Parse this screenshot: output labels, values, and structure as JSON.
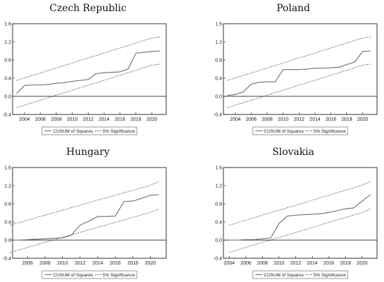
{
  "chart_data": [
    {
      "type": "line",
      "title": "Czech Republic",
      "x": [
        2003,
        2004,
        2005,
        2006,
        2007,
        2008,
        2009,
        2010,
        2011,
        2012,
        2013,
        2014,
        2015,
        2016,
        2017,
        2018,
        2019,
        2020,
        2021
      ],
      "xticks": [
        "2004",
        "2006",
        "2008",
        "2010",
        "2012",
        "2014",
        "2016",
        "2018",
        "2020"
      ],
      "yticks": [
        "-0.4",
        "0.0",
        "0.4",
        "0.8",
        "1.2",
        "1.6"
      ],
      "xlim": [
        2002.5,
        2021.8
      ],
      "ylim": [
        -0.4,
        1.6
      ],
      "series": [
        {
          "name": "CUSUM of Squares",
          "style": "solid",
          "color": "#6b6b6b",
          "values": [
            0.06,
            0.24,
            0.25,
            0.25,
            0.26,
            0.29,
            0.3,
            0.33,
            0.35,
            0.37,
            0.5,
            0.52,
            0.53,
            0.54,
            0.6,
            0.95,
            0.97,
            0.99,
            1.0
          ]
        },
        {
          "name": "5% Significance",
          "style": "dashed",
          "color": "#333333",
          "role": "upper",
          "values": [
            0.35,
            0.405,
            0.46,
            0.515,
            0.57,
            0.625,
            0.68,
            0.735,
            0.79,
            0.845,
            0.9,
            0.955,
            1.01,
            1.065,
            1.12,
            1.175,
            1.23,
            1.285,
            1.31
          ]
        },
        {
          "role": "lower",
          "style": "dashed",
          "color": "#333333",
          "values": [
            -0.25,
            -0.195,
            -0.14,
            -0.085,
            -0.03,
            0.025,
            0.08,
            0.135,
            0.19,
            0.245,
            0.3,
            0.355,
            0.41,
            0.465,
            0.52,
            0.575,
            0.63,
            0.685,
            0.71
          ]
        }
      ],
      "legend": [
        "CUSUM of Squares",
        "5% Significance"
      ],
      "grid": false,
      "zero_line": true
    },
    {
      "type": "line",
      "title": "Poland",
      "x": [
        2003,
        2004,
        2005,
        2006,
        2007,
        2008,
        2009,
        2010,
        2011,
        2012,
        2013,
        2014,
        2015,
        2016,
        2017,
        2018,
        2019,
        2020,
        2021
      ],
      "xticks": [
        "2004",
        "2006",
        "2008",
        "2010",
        "2012",
        "2014",
        "2016",
        "2018",
        "2020"
      ],
      "yticks": [
        "-0.4",
        "0.0",
        "0.4",
        "0.8",
        "1.2",
        "1.6"
      ],
      "xlim": [
        2002.5,
        2021.8
      ],
      "ylim": [
        -0.4,
        1.6
      ],
      "series": [
        {
          "name": "CUSUM of Squares",
          "style": "solid",
          "color": "#6b6b6b",
          "values": [
            0.02,
            0.04,
            0.1,
            0.27,
            0.31,
            0.32,
            0.32,
            0.59,
            0.59,
            0.59,
            0.6,
            0.62,
            0.62,
            0.63,
            0.64,
            0.7,
            0.76,
            0.99,
            1.0
          ]
        },
        {
          "name": "5% Significance",
          "style": "dashed",
          "color": "#333333",
          "role": "upper",
          "values": [
            0.35,
            0.405,
            0.46,
            0.515,
            0.57,
            0.625,
            0.68,
            0.735,
            0.79,
            0.845,
            0.9,
            0.955,
            1.01,
            1.065,
            1.12,
            1.175,
            1.23,
            1.285,
            1.31
          ]
        },
        {
          "role": "lower",
          "style": "dashed",
          "color": "#333333",
          "values": [
            -0.25,
            -0.195,
            -0.14,
            -0.085,
            -0.03,
            0.025,
            0.08,
            0.135,
            0.19,
            0.245,
            0.3,
            0.355,
            0.41,
            0.465,
            0.52,
            0.575,
            0.63,
            0.685,
            0.71
          ]
        }
      ],
      "legend": [
        "CUSUM of Squares",
        "5% Significance"
      ],
      "grid": false,
      "zero_line": true
    },
    {
      "type": "line",
      "title": "Hungary",
      "x": [
        2004,
        2005,
        2006,
        2007,
        2008,
        2009,
        2010,
        2011,
        2012,
        2013,
        2014,
        2015,
        2016,
        2017,
        2018,
        2019,
        2020,
        2021
      ],
      "xticks": [
        "2006",
        "2008",
        "2010",
        "2012",
        "2014",
        "2016",
        "2018",
        "2020"
      ],
      "yticks": [
        "-0.4",
        "0.0",
        "0.4",
        "0.8",
        "1.2",
        "1.6"
      ],
      "xlim": [
        2004.3,
        2021.8
      ],
      "ylim": [
        -0.4,
        1.6
      ],
      "series": [
        {
          "name": "CUSUM of Squares",
          "style": "solid",
          "color": "#6b6b6b",
          "values": [
            0.0,
            0.0,
            0.01,
            0.02,
            0.03,
            0.04,
            0.05,
            0.11,
            0.33,
            0.42,
            0.52,
            0.52,
            0.53,
            0.85,
            0.86,
            0.92,
            0.99,
            1.0
          ]
        },
        {
          "name": "5% Significance",
          "style": "dashed",
          "color": "#333333",
          "role": "upper",
          "values": [
            0.33,
            0.385,
            0.44,
            0.495,
            0.55,
            0.605,
            0.66,
            0.715,
            0.77,
            0.825,
            0.88,
            0.935,
            0.99,
            1.045,
            1.1,
            1.155,
            1.21,
            1.29
          ]
        },
        {
          "role": "lower",
          "style": "dashed",
          "color": "#333333",
          "values": [
            -0.27,
            -0.215,
            -0.16,
            -0.105,
            -0.05,
            0.005,
            0.06,
            0.115,
            0.17,
            0.225,
            0.28,
            0.335,
            0.39,
            0.445,
            0.5,
            0.555,
            0.61,
            0.69
          ]
        }
      ],
      "legend": [
        "CUSUM of Squares",
        "5% Significance"
      ],
      "grid": false,
      "zero_line": true
    },
    {
      "type": "line",
      "title": "Slovakia",
      "x": [
        2004,
        2005,
        2006,
        2007,
        2008,
        2009,
        2010,
        2011,
        2012,
        2013,
        2014,
        2015,
        2016,
        2017,
        2018,
        2019,
        2020,
        2021
      ],
      "xticks": [
        "2004",
        "2006",
        "2008",
        "2010",
        "2012",
        "2014",
        "2016",
        "2018",
        "2020"
      ],
      "yticks": [
        "-0.4",
        "0.0",
        "0.4",
        "0.8",
        "1.2",
        "1.6"
      ],
      "xlim": [
        2003.3,
        2021.8
      ],
      "ylim": [
        -0.4,
        1.6
      ],
      "series": [
        {
          "name": "CUSUM of Squares",
          "style": "solid",
          "color": "#6b6b6b",
          "values": [
            0.0,
            0.0,
            0.01,
            0.01,
            0.03,
            0.05,
            0.37,
            0.53,
            0.55,
            0.56,
            0.57,
            0.58,
            0.61,
            0.65,
            0.69,
            0.71,
            0.86,
            1.0
          ]
        },
        {
          "name": "5% Significance",
          "style": "dashed",
          "color": "#333333",
          "role": "upper",
          "values": [
            0.33,
            0.385,
            0.44,
            0.495,
            0.55,
            0.605,
            0.66,
            0.715,
            0.77,
            0.825,
            0.88,
            0.935,
            0.99,
            1.045,
            1.1,
            1.155,
            1.21,
            1.29
          ]
        },
        {
          "role": "lower",
          "style": "dashed",
          "color": "#333333",
          "values": [
            -0.27,
            -0.215,
            -0.16,
            -0.105,
            -0.05,
            0.005,
            0.06,
            0.115,
            0.17,
            0.225,
            0.28,
            0.335,
            0.39,
            0.445,
            0.5,
            0.555,
            0.61,
            0.69
          ]
        }
      ],
      "legend": [
        "CUSUM of Squares",
        "5% Significance"
      ],
      "grid": false,
      "zero_line": true
    }
  ]
}
